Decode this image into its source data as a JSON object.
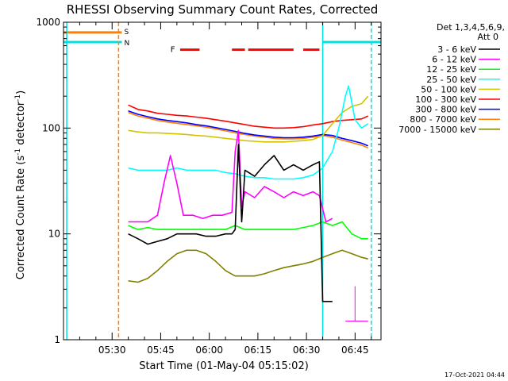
{
  "chart_data": {
    "type": "line",
    "title": "RHESSI Observing Summary Count Rates, Corrected",
    "xlabel": "Start Time (01-May-04 05:15:02)",
    "ylabel_main": "Corrected Count Rate (s",
    "ylabel_sup1": "-1",
    "ylabel_mid": " detector",
    "ylabel_sup2": "-1",
    "ylabel_end": ")",
    "y_scale": "log",
    "ylim": [
      1,
      1000
    ],
    "xlim": [
      "05:15",
      "06:53"
    ],
    "x_ticks": [
      "05:30",
      "05:45",
      "06:00",
      "06:15",
      "06:30",
      "06:45"
    ],
    "y_ticks": [
      "1",
      "10",
      "100",
      "1000"
    ],
    "legend": {
      "position": "top-right",
      "header_line1": "Det 1,3,4,5,6,9,",
      "header_line2": "Att 0"
    },
    "footer_date": "17-Oct-2021 04:44",
    "flag_labels": {
      "s": "S",
      "n": "N",
      "f": "F"
    },
    "series": [
      {
        "name": "3 - 6 keV",
        "color": "#000000",
        "points": [
          [
            "05:35",
            10
          ],
          [
            "05:38",
            9
          ],
          [
            "05:41",
            8
          ],
          [
            "05:44",
            8.5
          ],
          [
            "05:47",
            9
          ],
          [
            "05:50",
            10
          ],
          [
            "05:53",
            10
          ],
          [
            "05:56",
            10
          ],
          [
            "05:59",
            9.5
          ],
          [
            "06:02",
            9.5
          ],
          [
            "06:05",
            10
          ],
          [
            "06:07",
            10
          ],
          [
            "06:08",
            11
          ],
          [
            "06:09",
            70
          ],
          [
            "06:10",
            13
          ],
          [
            "06:11",
            40
          ],
          [
            "06:14",
            35
          ],
          [
            "06:17",
            45
          ],
          [
            "06:20",
            55
          ],
          [
            "06:23",
            40
          ],
          [
            "06:26",
            45
          ],
          [
            "06:29",
            40
          ],
          [
            "06:32",
            45
          ],
          [
            "06:34",
            48
          ],
          [
            "06:35",
            2.3
          ],
          [
            "06:38",
            2.3
          ]
        ]
      },
      {
        "name": "6 - 12 keV",
        "color": "#ff00ff",
        "points": [
          [
            "05:35",
            13
          ],
          [
            "05:38",
            13
          ],
          [
            "05:41",
            13
          ],
          [
            "05:44",
            15
          ],
          [
            "05:46",
            30
          ],
          [
            "05:48",
            55
          ],
          [
            "05:50",
            30
          ],
          [
            "05:52",
            15
          ],
          [
            "05:55",
            15
          ],
          [
            "05:58",
            14
          ],
          [
            "06:01",
            15
          ],
          [
            "06:04",
            15
          ],
          [
            "06:07",
            16
          ],
          [
            "06:08",
            60
          ],
          [
            "06:09",
            95
          ],
          [
            "06:10",
            18
          ],
          [
            "06:11",
            25
          ],
          [
            "06:14",
            22
          ],
          [
            "06:17",
            28
          ],
          [
            "06:20",
            25
          ],
          [
            "06:23",
            22
          ],
          [
            "06:26",
            25
          ],
          [
            "06:29",
            23
          ],
          [
            "06:32",
            25
          ],
          [
            "06:34",
            23
          ],
          [
            "06:36",
            13
          ],
          [
            "06:38",
            14
          ]
        ]
      },
      {
        "name": "12 - 25 keV",
        "color": "#00ff00",
        "points": [
          [
            "05:35",
            12
          ],
          [
            "05:38",
            11
          ],
          [
            "05:41",
            11.5
          ],
          [
            "05:44",
            11
          ],
          [
            "05:47",
            11
          ],
          [
            "05:50",
            11
          ],
          [
            "05:53",
            11
          ],
          [
            "05:56",
            11
          ],
          [
            "05:59",
            11
          ],
          [
            "06:02",
            11
          ],
          [
            "06:05",
            11
          ],
          [
            "06:08",
            12
          ],
          [
            "06:11",
            11
          ],
          [
            "06:14",
            11
          ],
          [
            "06:17",
            11
          ],
          [
            "06:20",
            11
          ],
          [
            "06:23",
            11
          ],
          [
            "06:26",
            11
          ],
          [
            "06:29",
            11.5
          ],
          [
            "06:32",
            12
          ],
          [
            "06:35",
            13
          ],
          [
            "06:38",
            12
          ],
          [
            "06:41",
            13
          ],
          [
            "06:44",
            10
          ],
          [
            "06:47",
            9
          ],
          [
            "06:49",
            9
          ]
        ]
      },
      {
        "name": "25 - 50 keV",
        "color": "#00ffff",
        "points": [
          [
            "05:35",
            42
          ],
          [
            "05:38",
            40
          ],
          [
            "05:41",
            40
          ],
          [
            "05:44",
            40
          ],
          [
            "05:47",
            40
          ],
          [
            "05:50",
            42
          ],
          [
            "05:53",
            40
          ],
          [
            "05:56",
            40
          ],
          [
            "05:59",
            40
          ],
          [
            "06:02",
            40
          ],
          [
            "06:05",
            38
          ],
          [
            "06:08",
            37
          ],
          [
            "06:11",
            35
          ],
          [
            "06:14",
            34
          ],
          [
            "06:17",
            34
          ],
          [
            "06:20",
            33
          ],
          [
            "06:23",
            33
          ],
          [
            "06:26",
            33
          ],
          [
            "06:29",
            34
          ],
          [
            "06:32",
            36
          ],
          [
            "06:35",
            42
          ],
          [
            "06:38",
            60
          ],
          [
            "06:40",
            100
          ],
          [
            "06:42",
            200
          ],
          [
            "06:43",
            250
          ],
          [
            "06:45",
            120
          ],
          [
            "06:47",
            100
          ],
          [
            "06:49",
            110
          ]
        ]
      },
      {
        "name": "50 - 100 keV",
        "color": "#d4c400",
        "points": [
          [
            "05:35",
            95
          ],
          [
            "05:38",
            92
          ],
          [
            "05:41",
            90
          ],
          [
            "05:44",
            90
          ],
          [
            "05:47",
            89
          ],
          [
            "05:50",
            88
          ],
          [
            "05:53",
            87
          ],
          [
            "05:56",
            85
          ],
          [
            "05:59",
            84
          ],
          [
            "06:02",
            82
          ],
          [
            "06:05",
            80
          ],
          [
            "06:08",
            78
          ],
          [
            "06:11",
            76
          ],
          [
            "06:14",
            75
          ],
          [
            "06:17",
            74
          ],
          [
            "06:20",
            74
          ],
          [
            "06:23",
            74
          ],
          [
            "06:26",
            75
          ],
          [
            "06:29",
            76
          ],
          [
            "06:32",
            78
          ],
          [
            "06:35",
            85
          ],
          [
            "06:38",
            110
          ],
          [
            "06:41",
            140
          ],
          [
            "06:44",
            160
          ],
          [
            "06:47",
            170
          ],
          [
            "06:49",
            200
          ]
        ]
      },
      {
        "name": "100 - 300 keV",
        "color": "#ff0000",
        "points": [
          [
            "05:35",
            165
          ],
          [
            "05:38",
            150
          ],
          [
            "05:41",
            145
          ],
          [
            "05:44",
            138
          ],
          [
            "05:47",
            135
          ],
          [
            "05:50",
            132
          ],
          [
            "05:53",
            130
          ],
          [
            "05:56",
            127
          ],
          [
            "05:59",
            124
          ],
          [
            "06:02",
            120
          ],
          [
            "06:05",
            116
          ],
          [
            "06:08",
            112
          ],
          [
            "06:11",
            108
          ],
          [
            "06:14",
            104
          ],
          [
            "06:17",
            102
          ],
          [
            "06:20",
            100
          ],
          [
            "06:23",
            100
          ],
          [
            "06:26",
            101
          ],
          [
            "06:29",
            103
          ],
          [
            "06:32",
            107
          ],
          [
            "06:35",
            110
          ],
          [
            "06:38",
            115
          ],
          [
            "06:41",
            118
          ],
          [
            "06:44",
            120
          ],
          [
            "06:47",
            122
          ],
          [
            "06:49",
            130
          ]
        ]
      },
      {
        "name": "300 - 800 keV",
        "color": "#0000ff",
        "points": [
          [
            "05:35",
            145
          ],
          [
            "05:38",
            135
          ],
          [
            "05:41",
            128
          ],
          [
            "05:44",
            122
          ],
          [
            "05:47",
            118
          ],
          [
            "05:50",
            115
          ],
          [
            "05:53",
            112
          ],
          [
            "05:56",
            108
          ],
          [
            "05:59",
            105
          ],
          [
            "06:02",
            101
          ],
          [
            "06:05",
            97
          ],
          [
            "06:08",
            93
          ],
          [
            "06:11",
            89
          ],
          [
            "06:14",
            86
          ],
          [
            "06:17",
            84
          ],
          [
            "06:20",
            82
          ],
          [
            "06:23",
            81
          ],
          [
            "06:26",
            81
          ],
          [
            "06:29",
            82
          ],
          [
            "06:32",
            84
          ],
          [
            "06:35",
            87
          ],
          [
            "06:38",
            85
          ],
          [
            "06:41",
            80
          ],
          [
            "06:44",
            76
          ],
          [
            "06:47",
            72
          ],
          [
            "06:49",
            68
          ]
        ]
      },
      {
        "name": "800 - 7000 keV",
        "color": "#ff8000",
        "points": [
          [
            "05:35",
            140
          ],
          [
            "05:38",
            130
          ],
          [
            "05:41",
            124
          ],
          [
            "05:44",
            118
          ],
          [
            "05:47",
            114
          ],
          [
            "05:50",
            111
          ],
          [
            "05:53",
            108
          ],
          [
            "05:56",
            105
          ],
          [
            "05:59",
            102
          ],
          [
            "06:02",
            98
          ],
          [
            "06:05",
            94
          ],
          [
            "06:08",
            90
          ],
          [
            "06:11",
            87
          ],
          [
            "06:14",
            84
          ],
          [
            "06:17",
            82
          ],
          [
            "06:20",
            80
          ],
          [
            "06:23",
            79
          ],
          [
            "06:26",
            79
          ],
          [
            "06:29",
            80
          ],
          [
            "06:32",
            82
          ],
          [
            "06:35",
            85
          ],
          [
            "06:38",
            82
          ],
          [
            "06:41",
            77
          ],
          [
            "06:44",
            73
          ],
          [
            "06:47",
            69
          ],
          [
            "06:49",
            65
          ]
        ]
      },
      {
        "name": "7000 - 15000 keV",
        "color": "#808000",
        "points": [
          [
            "05:35",
            3.6
          ],
          [
            "05:38",
            3.5
          ],
          [
            "05:41",
            3.8
          ],
          [
            "05:44",
            4.5
          ],
          [
            "05:47",
            5.5
          ],
          [
            "05:50",
            6.5
          ],
          [
            "05:53",
            7
          ],
          [
            "05:56",
            7
          ],
          [
            "05:59",
            6.5
          ],
          [
            "06:02",
            5.5
          ],
          [
            "06:05",
            4.5
          ],
          [
            "06:08",
            4
          ],
          [
            "06:11",
            4
          ],
          [
            "06:14",
            4
          ],
          [
            "06:17",
            4.2
          ],
          [
            "06:20",
            4.5
          ],
          [
            "06:23",
            4.8
          ],
          [
            "06:26",
            5
          ],
          [
            "06:29",
            5.2
          ],
          [
            "06:32",
            5.5
          ],
          [
            "06:35",
            6
          ],
          [
            "06:38",
            6.5
          ],
          [
            "06:41",
            7
          ],
          [
            "06:44",
            6.5
          ],
          [
            "06:47",
            6
          ],
          [
            "06:49",
            5.8
          ]
        ]
      }
    ],
    "fine_series": [
      {
        "color": "#ff00ff",
        "points": [
          [
            "06:42",
            1.5
          ],
          [
            "06:49",
            1.5
          ]
        ]
      },
      {
        "color": "#ff00ff",
        "points": [
          [
            "06:45",
            1.5
          ],
          [
            "06:45",
            3.2
          ]
        ]
      }
    ],
    "vertical_markers": [
      {
        "time": "05:16",
        "color": "#00e0e0",
        "style": "solid"
      },
      {
        "time": "05:32",
        "color": "#ff8000",
        "style": "dashed"
      },
      {
        "time": "06:35",
        "color": "#00e0e0",
        "style": "solid"
      },
      {
        "time": "06:50",
        "color": "#00e0e0",
        "style": "dashed"
      }
    ],
    "state_bars": [
      {
        "label": "S",
        "color": "#ff8000",
        "start": "05:15",
        "end": "05:33",
        "y": 800
      },
      {
        "label": "N",
        "color": "#00e0e0",
        "start": "05:15",
        "end": "05:33",
        "y": 650
      },
      {
        "label": "N",
        "color": "#00e0e0",
        "start": "06:35",
        "end": "06:53",
        "y": 650
      }
    ],
    "flare_bars": {
      "label": "F",
      "color": "#ff0000",
      "y": 550,
      "segments": [
        [
          "05:51",
          "05:57"
        ],
        [
          "06:07",
          "06:11"
        ],
        [
          "06:12",
          "06:26"
        ],
        [
          "06:29",
          "06:34"
        ]
      ]
    }
  }
}
